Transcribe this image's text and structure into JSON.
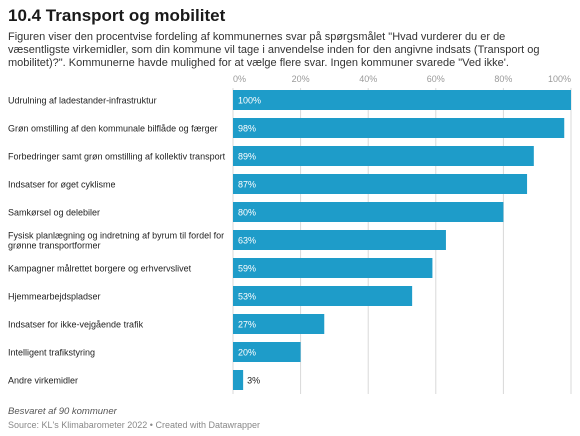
{
  "header": {
    "title": "10.4 Transport og mobilitet",
    "description": "Figuren viser den procentvise fordeling af kommunernes svar på spørgsmålet \"Hvad vurderer du er de væsentligste virkemidler, som din kommune vil tage i anvendelse inden for den angivne indsats (Transport og mobilitet)?\". Kommunerne havde mulighed for at vælge flere svar. Ingen kommuner svarede \"Ved ikke'."
  },
  "footer": {
    "note": "Besvaret af 90 kommuner",
    "source": "Source: KL's Klimabarometer 2022 • Created with Datawrapper"
  },
  "colors": {
    "bar": "#1e9cc9",
    "grid": "#d9d9d9",
    "value_inside": "#ffffff",
    "value_outside": "#222222"
  },
  "chart_data": {
    "type": "bar",
    "orientation": "horizontal",
    "title": "10.4 Transport og mobilitet",
    "xlim": [
      0,
      100
    ],
    "ticks": [
      0,
      20,
      40,
      60,
      80,
      100
    ],
    "tick_labels": [
      "0%",
      "20%",
      "40%",
      "60%",
      "80%",
      "100%"
    ],
    "grid": true,
    "categories": [
      "Udrulning af ladestander-infrastruktur",
      "Grøn omstilling af den kommunale bilflåde og færger",
      "Forbedringer samt grøn omstilling af kollektiv transport",
      "Indsatser for øget cyklisme",
      "Samkørsel og delebiler",
      "Fysisk planlægning og indretning af byrum til fordel for grønne transportformer",
      "Kampagner målrettet borgere og erhvervslivet",
      "Hjemmearbejdspladser",
      "Indsatser for ikke-vejgående trafik",
      "Intelligent trafikstyring",
      "Andre virkemidler"
    ],
    "category_lines": [
      [
        "Udrulning af ladestander-infrastruktur"
      ],
      [
        "Grøn omstilling af den kommunale bilflåde og færger"
      ],
      [
        "Forbedringer samt grøn omstilling af kollektiv transport"
      ],
      [
        "Indsatser for øget cyklisme"
      ],
      [
        "Samkørsel og delebiler"
      ],
      [
        "Fysisk planlægning og indretning af byrum til fordel for",
        "grønne transportformer"
      ],
      [
        "Kampagner målrettet borgere og erhvervslivet"
      ],
      [
        "Hjemmearbejdspladser"
      ],
      [
        "Indsatser for ikke-vejgående trafik"
      ],
      [
        "Intelligent trafikstyring"
      ],
      [
        "Andre virkemidler"
      ]
    ],
    "values": [
      100,
      98,
      89,
      87,
      80,
      63,
      59,
      53,
      27,
      20,
      3
    ],
    "value_labels": [
      "100%",
      "98%",
      "89%",
      "87%",
      "80%",
      "63%",
      "59%",
      "53%",
      "27%",
      "20%",
      "3%"
    ]
  }
}
